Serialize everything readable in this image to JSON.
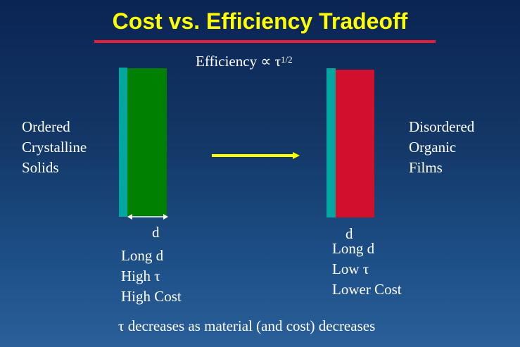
{
  "slide": {
    "title": "Cost vs. Efficiency Tradeoff",
    "formula_base": "Efficiency ∝ τ",
    "formula_exponent": "1/2",
    "left_label": [
      "Ordered",
      "Crystalline",
      "Solids"
    ],
    "right_label": [
      "Disordered",
      "Organic",
      "Films"
    ],
    "left_dimension": "d",
    "right_dimension": "d",
    "left_properties": [
      "Long d",
      "High τ",
      "High Cost"
    ],
    "right_properties": [
      "Long d",
      "Low τ",
      "Lower Cost"
    ],
    "conclusion": "τ decreases as material (and cost) decreases"
  },
  "colors": {
    "title": "#ffff00",
    "rule": "#e61e3c",
    "teal": "#00a7a0",
    "green": "#008000",
    "red": "#d0102c",
    "arrow": "#ffff00",
    "text": "#ffffff"
  }
}
